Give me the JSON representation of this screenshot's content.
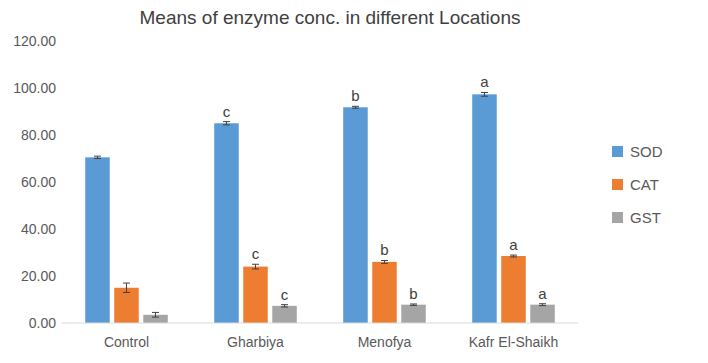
{
  "chart_data": {
    "type": "bar",
    "title": "Means of enzyme conc. in different Locations",
    "categories": [
      "Control",
      "Gharbiya",
      "Menofya",
      "Kafr El-Shaikh"
    ],
    "series": [
      {
        "name": "SOD",
        "color": "#5b9bd5",
        "values": [
          70.5,
          85.0,
          91.8,
          97.3
        ],
        "errors": [
          0.5,
          0.7,
          0.4,
          0.8
        ],
        "annotations": [
          null,
          "c",
          "b",
          "a"
        ]
      },
      {
        "name": "CAT",
        "color": "#ed7d31",
        "values": [
          15.0,
          24.0,
          26.0,
          28.5
        ],
        "errors": [
          2.0,
          1.0,
          0.6,
          0.4
        ],
        "annotations": [
          null,
          "c",
          "b",
          "a"
        ]
      },
      {
        "name": "GST",
        "color": "#a5a5a5",
        "values": [
          3.5,
          7.3,
          7.8,
          7.8
        ],
        "errors": [
          1.0,
          0.5,
          0.3,
          0.4
        ],
        "annotations": [
          null,
          "c",
          "b",
          "a"
        ]
      }
    ],
    "ylim": [
      0,
      120
    ],
    "yticks": [
      {
        "value": 0,
        "label": "0.00"
      },
      {
        "value": 20,
        "label": "20.00"
      },
      {
        "value": 40,
        "label": "40.00"
      },
      {
        "value": 60,
        "label": "60.00"
      },
      {
        "value": 80,
        "label": "80.00"
      },
      {
        "value": 100,
        "label": "100.00"
      },
      {
        "value": 120,
        "label": "120.00"
      }
    ],
    "grid": false,
    "legend": "right"
  }
}
